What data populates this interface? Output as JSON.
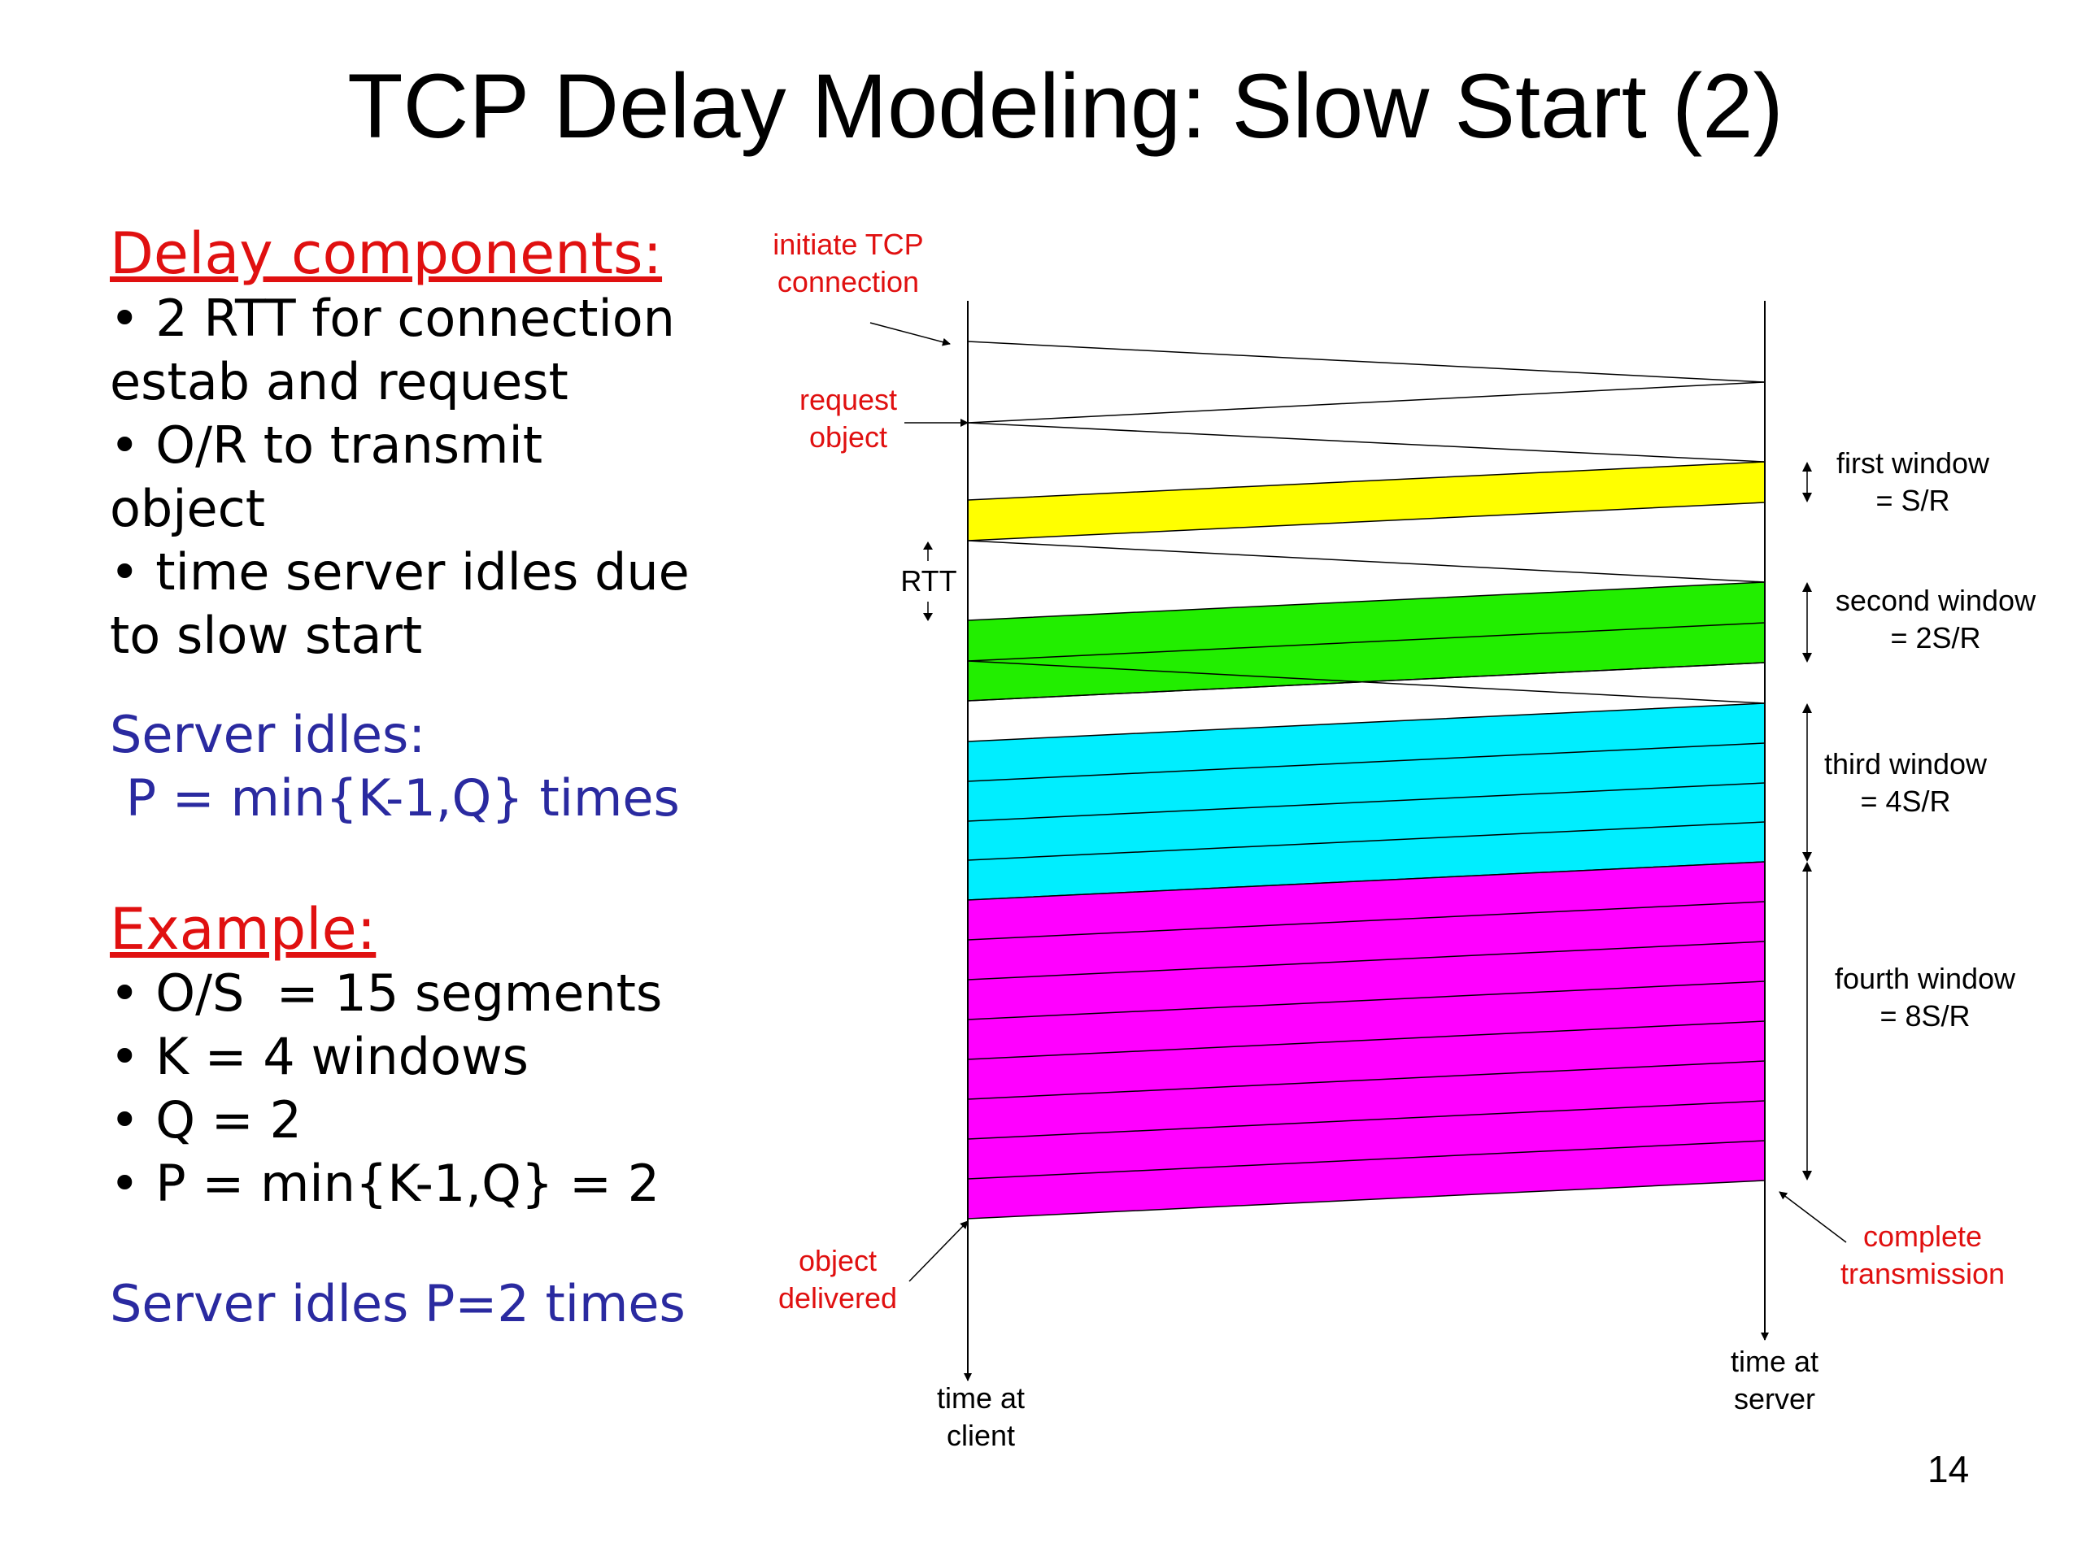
{
  "title": "TCP Delay Modeling: Slow Start (2)",
  "left": {
    "delay_heading": "Delay components:",
    "delay_items": [
      "• 2 RTT for connection",
      "estab and request",
      "• O/R to transmit",
      "object",
      "• time server idles due",
      "to slow start"
    ],
    "server_idles_label": "Server idles:",
    "server_idles_formula": " P = min{K-1,Q} times",
    "example_heading": "Example:",
    "example_items": [
      "• O/S  = 15 segments",
      "• K = 4 windows",
      "• Q = 2",
      "• P = min{K-1,Q} = 2"
    ],
    "conclusion": "Server idles P=2 times"
  },
  "diagram": {
    "colors": {
      "red_label": "#e01010",
      "yellow": "#ffff00",
      "green": "#22ee00",
      "cyan": "#00eeff",
      "magenta": "#ff00ff"
    },
    "initiate_line1": "initiate TCP",
    "initiate_line2": "connection",
    "request_line1": "request",
    "request_line2": "object",
    "rtt": "RTT",
    "object_delivered_line1": "object",
    "object_delivered_line2": "delivered",
    "complete_line1": "complete",
    "complete_line2": "transmission",
    "client_line1": "time at",
    "client_line2": "client",
    "server_line1": "time at",
    "server_line2": "server",
    "windows": [
      {
        "line1": "first window",
        "line2": "= S/R"
      },
      {
        "line1": "second window",
        "line2": "= 2S/R"
      },
      {
        "line1": "third window",
        "line2": "= 4S/R"
      },
      {
        "line1": "fourth window",
        "line2": "= 8S/R"
      }
    ]
  },
  "page_number": "14"
}
